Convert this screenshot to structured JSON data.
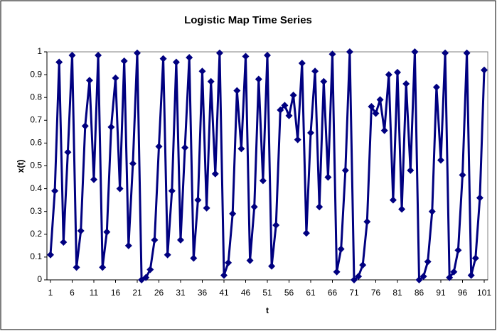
{
  "chart_data": {
    "type": "line",
    "title": "Logistic Map Time Series",
    "x_label": "t",
    "y_label": "x(t)",
    "x": [
      1,
      2,
      3,
      4,
      5,
      6,
      7,
      8,
      9,
      10,
      11,
      12,
      13,
      14,
      15,
      16,
      17,
      18,
      19,
      20,
      21,
      22,
      23,
      24,
      25,
      26,
      27,
      28,
      29,
      30,
      31,
      32,
      33,
      34,
      35,
      36,
      37,
      38,
      39,
      40,
      41,
      42,
      43,
      44,
      45,
      46,
      47,
      48,
      49,
      50,
      51,
      52,
      53,
      54,
      55,
      56,
      57,
      58,
      59,
      60,
      61,
      62,
      63,
      64,
      65,
      66,
      67,
      68,
      69,
      70,
      71,
      72,
      73,
      74,
      75,
      76,
      77,
      78,
      79,
      80,
      81,
      82,
      83,
      84,
      85,
      86,
      87,
      88,
      89,
      90,
      91,
      92,
      93,
      94,
      95,
      96,
      97,
      98,
      99,
      100,
      101
    ],
    "series": [
      {
        "name": "x(t)",
        "color": "#000080",
        "values": [
          0.11,
          0.39,
          0.955,
          0.165,
          0.56,
          0.985,
          0.055,
          0.215,
          0.675,
          0.875,
          0.44,
          0.985,
          0.055,
          0.21,
          0.67,
          0.885,
          0.4,
          0.96,
          0.15,
          0.51,
          0.995,
          0.0,
          0.01,
          0.045,
          0.175,
          0.585,
          0.97,
          0.11,
          0.39,
          0.955,
          0.175,
          0.58,
          0.975,
          0.095,
          0.35,
          0.915,
          0.315,
          0.87,
          0.465,
          0.995,
          0.02,
          0.075,
          0.29,
          0.83,
          0.575,
          0.98,
          0.085,
          0.32,
          0.88,
          0.435,
          0.985,
          0.06,
          0.24,
          0.745,
          0.765,
          0.72,
          0.81,
          0.615,
          0.95,
          0.205,
          0.645,
          0.915,
          0.32,
          0.87,
          0.45,
          0.99,
          0.035,
          0.135,
          0.48,
          1.0,
          0.0,
          0.015,
          0.065,
          0.255,
          0.76,
          0.73,
          0.79,
          0.655,
          0.9,
          0.35,
          0.91,
          0.31,
          0.86,
          0.48,
          1.0,
          0.0,
          0.015,
          0.08,
          0.3,
          0.845,
          0.525,
          0.995,
          0.01,
          0.035,
          0.13,
          0.46,
          0.995,
          0.02,
          0.095,
          0.36,
          0.92
        ]
      }
    ],
    "xlim": [
      1,
      101
    ],
    "xticks": [
      1,
      6,
      11,
      16,
      21,
      26,
      31,
      36,
      41,
      46,
      51,
      56,
      61,
      66,
      71,
      76,
      81,
      86,
      91,
      96,
      101
    ],
    "ylim": [
      0,
      1
    ],
    "yticks": [
      0,
      0.1,
      0.2,
      0.3,
      0.4,
      0.5,
      0.6,
      0.7,
      0.8,
      0.9,
      1
    ],
    "grid": false
  }
}
